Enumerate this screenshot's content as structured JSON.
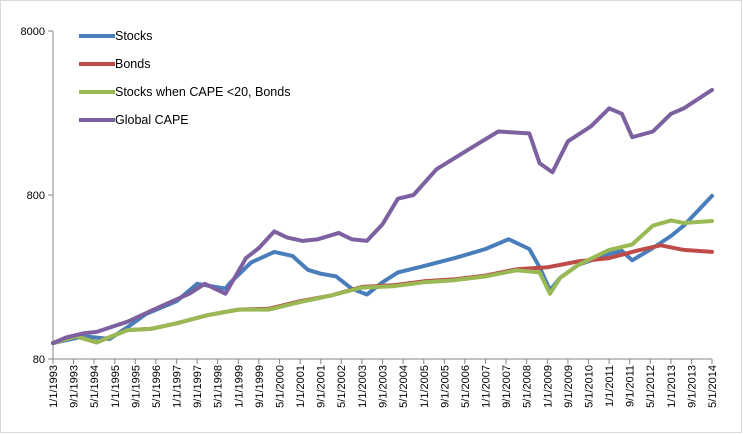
{
  "chart_data": {
    "type": "line",
    "title": "",
    "xlabel": "",
    "ylabel": "",
    "yscale": "log",
    "ylim": [
      80,
      8000
    ],
    "yticks": [
      80,
      800,
      8000
    ],
    "xlim": [
      "1993-01-01",
      "2014-05-01"
    ],
    "x_tick_labels": [
      "1/1/1993",
      "9/1/1993",
      "5/1/1994",
      "1/1/1995",
      "9/1/1995",
      "5/1/1996",
      "1/1/1997",
      "9/1/1997",
      "5/1/1998",
      "1/1/1999",
      "9/1/1999",
      "5/1/2000",
      "1/1/2001",
      "9/1/2001",
      "5/1/2002",
      "1/1/2003",
      "9/1/2003",
      "5/1/2004",
      "1/1/2005",
      "9/1/2005",
      "5/1/2006",
      "1/1/2007",
      "9/1/2007",
      "5/1/2008",
      "1/1/2009",
      "9/1/2009",
      "5/1/2010",
      "1/1/2011",
      "9/1/2011",
      "5/1/2012",
      "1/1/2013",
      "9/1/2013",
      "5/1/2014"
    ],
    "grid": false,
    "legend_position": "top-left",
    "series": [
      {
        "name": "Stocks",
        "color": "#4a7ebb",
        "points": [
          [
            "1993-01-01",
            100
          ],
          [
            "1994-01-01",
            110
          ],
          [
            "1994-11-01",
            106
          ],
          [
            "1995-06-01",
            125
          ],
          [
            "1996-01-01",
            150
          ],
          [
            "1997-01-01",
            180
          ],
          [
            "1997-09-01",
            230
          ],
          [
            "1998-08-01",
            215
          ],
          [
            "1998-10-01",
            235
          ],
          [
            "1999-06-01",
            310
          ],
          [
            "2000-03-01",
            360
          ],
          [
            "2000-10-01",
            340
          ],
          [
            "2001-04-01",
            280
          ],
          [
            "2001-09-01",
            265
          ],
          [
            "2002-03-01",
            255
          ],
          [
            "2002-09-01",
            215
          ],
          [
            "2003-03-01",
            198
          ],
          [
            "2003-09-01",
            235
          ],
          [
            "2004-03-01",
            270
          ],
          [
            "2005-01-01",
            295
          ],
          [
            "2006-01-01",
            330
          ],
          [
            "2007-01-01",
            375
          ],
          [
            "2007-10-01",
            430
          ],
          [
            "2008-06-01",
            375
          ],
          [
            "2008-10-01",
            290
          ],
          [
            "2009-02-01",
            210
          ],
          [
            "2009-06-01",
            250
          ],
          [
            "2010-01-01",
            300
          ],
          [
            "2011-01-01",
            350
          ],
          [
            "2011-06-01",
            365
          ],
          [
            "2011-10-01",
            320
          ],
          [
            "2012-06-01",
            380
          ],
          [
            "2013-01-01",
            450
          ],
          [
            "2013-06-01",
            520
          ],
          [
            "2014-05-01",
            790
          ]
        ]
      },
      {
        "name": "Bonds",
        "color": "#be4b48",
        "points": [
          [
            "1993-01-01",
            100
          ],
          [
            "1993-10-01",
            110
          ],
          [
            "1994-06-01",
            101
          ],
          [
            "1995-06-01",
            120
          ],
          [
            "1996-03-01",
            122
          ],
          [
            "1997-01-01",
            132
          ],
          [
            "1998-01-01",
            148
          ],
          [
            "1999-01-01",
            160
          ],
          [
            "2000-01-01",
            162
          ],
          [
            "2001-01-01",
            180
          ],
          [
            "2002-01-01",
            195
          ],
          [
            "2003-01-01",
            220
          ],
          [
            "2004-01-01",
            225
          ],
          [
            "2005-01-01",
            238
          ],
          [
            "2006-01-01",
            245
          ],
          [
            "2007-01-01",
            258
          ],
          [
            "2008-01-01",
            282
          ],
          [
            "2009-01-01",
            290
          ],
          [
            "2010-01-01",
            315
          ],
          [
            "2011-01-01",
            330
          ],
          [
            "2012-01-01",
            370
          ],
          [
            "2012-09-01",
            395
          ],
          [
            "2013-06-01",
            370
          ],
          [
            "2014-05-01",
            360
          ]
        ]
      },
      {
        "name": "Stocks when CAPE <20, Bonds",
        "color": "#98b954",
        "points": [
          [
            "1993-01-01",
            100
          ],
          [
            "1993-10-01",
            110
          ],
          [
            "1994-06-01",
            101
          ],
          [
            "1995-06-01",
            120
          ],
          [
            "1996-03-01",
            122
          ],
          [
            "1997-01-01",
            132
          ],
          [
            "1998-01-01",
            148
          ],
          [
            "1999-01-01",
            160
          ],
          [
            "2000-01-01",
            160
          ],
          [
            "2001-01-01",
            178
          ],
          [
            "2002-01-01",
            195
          ],
          [
            "2003-01-01",
            218
          ],
          [
            "2004-01-01",
            222
          ],
          [
            "2005-01-01",
            235
          ],
          [
            "2006-01-01",
            242
          ],
          [
            "2007-01-01",
            255
          ],
          [
            "2008-01-01",
            278
          ],
          [
            "2008-10-01",
            270
          ],
          [
            "2009-02-01",
            200
          ],
          [
            "2009-06-01",
            250
          ],
          [
            "2010-01-01",
            300
          ],
          [
            "2011-01-01",
            370
          ],
          [
            "2011-10-01",
            400
          ],
          [
            "2012-06-01",
            520
          ],
          [
            "2013-01-01",
            560
          ],
          [
            "2013-06-01",
            540
          ],
          [
            "2014-05-01",
            555
          ]
        ]
      },
      {
        "name": "Global CAPE",
        "color": "#7d60a0",
        "points": [
          [
            "1993-01-01",
            100
          ],
          [
            "1993-06-01",
            108
          ],
          [
            "1994-01-01",
            115
          ],
          [
            "1994-06-01",
            117
          ],
          [
            "1995-06-01",
            135
          ],
          [
            "1996-06-01",
            165
          ],
          [
            "1997-06-01",
            200
          ],
          [
            "1997-12-01",
            230
          ],
          [
            "1998-08-01",
            200
          ],
          [
            "1999-04-01",
            330
          ],
          [
            "1999-09-01",
            380
          ],
          [
            "2000-03-01",
            480
          ],
          [
            "2000-08-01",
            440
          ],
          [
            "2001-02-01",
            420
          ],
          [
            "2001-08-01",
            430
          ],
          [
            "2002-04-01",
            470
          ],
          [
            "2002-09-01",
            430
          ],
          [
            "2003-03-01",
            420
          ],
          [
            "2003-09-01",
            530
          ],
          [
            "2004-03-01",
            760
          ],
          [
            "2004-09-01",
            800
          ],
          [
            "2005-06-01",
            1150
          ],
          [
            "2006-06-01",
            1500
          ],
          [
            "2007-06-01",
            1950
          ],
          [
            "2008-06-01",
            1900
          ],
          [
            "2008-10-01",
            1250
          ],
          [
            "2009-03-01",
            1100
          ],
          [
            "2009-09-01",
            1700
          ],
          [
            "2010-06-01",
            2100
          ],
          [
            "2011-01-01",
            2700
          ],
          [
            "2011-06-01",
            2500
          ],
          [
            "2011-10-01",
            1800
          ],
          [
            "2012-06-01",
            1950
          ],
          [
            "2013-01-01",
            2500
          ],
          [
            "2013-06-01",
            2700
          ],
          [
            "2014-05-01",
            3500
          ]
        ]
      }
    ]
  }
}
